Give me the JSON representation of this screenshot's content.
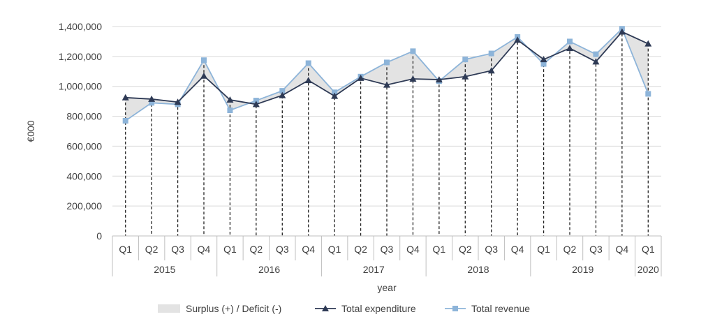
{
  "chart_data": {
    "type": "line",
    "ylabel": "€000",
    "xlabel": "year",
    "ylim": [
      0,
      1400000
    ],
    "y_ticks": [
      "0",
      "200,000",
      "400,000",
      "600,000",
      "800,000",
      "1,000,000",
      "1,200,000",
      "1,400,000"
    ],
    "y_tick_values": [
      0,
      200000,
      400000,
      600000,
      800000,
      1000000,
      1200000,
      1400000
    ],
    "grid": true,
    "legend_position": "bottom",
    "categories": [
      "Q1",
      "Q2",
      "Q3",
      "Q4",
      "Q1",
      "Q2",
      "Q3",
      "Q4",
      "Q1",
      "Q2",
      "Q3",
      "Q4",
      "Q1",
      "Q2",
      "Q3",
      "Q4",
      "Q1",
      "Q2",
      "Q3",
      "Q4",
      "Q1"
    ],
    "year_groups": [
      {
        "label": "2015",
        "count": 4
      },
      {
        "label": "2016",
        "count": 4
      },
      {
        "label": "2017",
        "count": 4
      },
      {
        "label": "2018",
        "count": 4
      },
      {
        "label": "2019",
        "count": 4
      },
      {
        "label": "2020",
        "count": 1
      }
    ],
    "series": [
      {
        "name": "Total expenditure",
        "color": "#2e3a55",
        "marker": "triangle",
        "values": [
          925000,
          915000,
          895000,
          1070000,
          910000,
          880000,
          940000,
          1040000,
          935000,
          1055000,
          1010000,
          1050000,
          1045000,
          1065000,
          1105000,
          1310000,
          1180000,
          1255000,
          1165000,
          1365000,
          1285000
        ]
      },
      {
        "name": "Total revenue",
        "color": "#8db4d9",
        "marker": "square",
        "values": [
          770000,
          890000,
          880000,
          1175000,
          840000,
          905000,
          970000,
          1155000,
          960000,
          1065000,
          1160000,
          1235000,
          1035000,
          1180000,
          1220000,
          1330000,
          1150000,
          1300000,
          1215000,
          1385000,
          950000
        ]
      }
    ],
    "area": {
      "name": "Surplus (+) / Deficit (-)",
      "color": "#e3e3e3"
    }
  }
}
